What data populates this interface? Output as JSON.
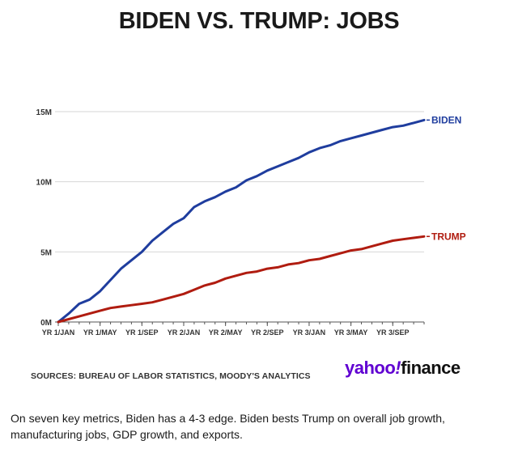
{
  "title": "BIDEN VS. TRUMP: JOBS",
  "sources": "SOURCES: BUREAU OF LABOR STATISTICS, MOODY'S ANALYTICS",
  "logo": {
    "part1": "yahoo",
    "part2": "!",
    "part3": "finance"
  },
  "caption": "On seven key metrics, Biden has a 4-3 edge. Biden bests Trump on overall job growth, manufacturing jobs, GDP growth, and exports.",
  "colors": {
    "biden": "#1f3d9e",
    "trump": "#b01c10",
    "grid": "#d6d6d6",
    "axis": "#555555"
  },
  "chart_data": {
    "type": "line",
    "title": "BIDEN VS. TRUMP: JOBS",
    "xlabel": "",
    "ylabel": "",
    "x": [
      0,
      1,
      2,
      3,
      4,
      5,
      6,
      7,
      8,
      9,
      10,
      11,
      12,
      13,
      14,
      15,
      16,
      17,
      18,
      19,
      20,
      21,
      22,
      23,
      24,
      25,
      26,
      27,
      28,
      29,
      30,
      31,
      32,
      33,
      34,
      35
    ],
    "xticks": [
      {
        "at": 0,
        "label": "YR 1/JAN"
      },
      {
        "at": 4,
        "label": "YR 1/MAY"
      },
      {
        "at": 8,
        "label": "YR 1/SEP"
      },
      {
        "at": 12,
        "label": "YR 2/JAN"
      },
      {
        "at": 16,
        "label": "YR 2/MAY"
      },
      {
        "at": 20,
        "label": "YR 2/SEP"
      },
      {
        "at": 24,
        "label": "YR 3/JAN"
      },
      {
        "at": 28,
        "label": "YR 3/MAY"
      },
      {
        "at": 32,
        "label": "YR 3/SEP"
      }
    ],
    "yticks": [
      {
        "value": 0,
        "label": "0M"
      },
      {
        "value": 5,
        "label": "5M"
      },
      {
        "value": 10,
        "label": "10M"
      },
      {
        "value": 15,
        "label": "15M"
      }
    ],
    "ylim": [
      0,
      15
    ],
    "xlim": [
      0,
      35
    ],
    "grid": true,
    "series": [
      {
        "name": "BIDEN",
        "values": [
          0,
          0.6,
          1.3,
          1.6,
          2.2,
          3.0,
          3.8,
          4.4,
          5.0,
          5.8,
          6.4,
          7.0,
          7.4,
          8.2,
          8.6,
          8.9,
          9.3,
          9.6,
          10.1,
          10.4,
          10.8,
          11.1,
          11.4,
          11.7,
          12.1,
          12.4,
          12.6,
          12.9,
          13.1,
          13.3,
          13.5,
          13.7,
          13.9,
          14.0,
          14.2,
          14.4
        ]
      },
      {
        "name": "TRUMP",
        "values": [
          0,
          0.2,
          0.4,
          0.6,
          0.8,
          1.0,
          1.1,
          1.2,
          1.3,
          1.4,
          1.6,
          1.8,
          2.0,
          2.3,
          2.6,
          2.8,
          3.1,
          3.3,
          3.5,
          3.6,
          3.8,
          3.9,
          4.1,
          4.2,
          4.4,
          4.5,
          4.7,
          4.9,
          5.1,
          5.2,
          5.4,
          5.6,
          5.8,
          5.9,
          6.0,
          6.1
        ]
      }
    ]
  }
}
